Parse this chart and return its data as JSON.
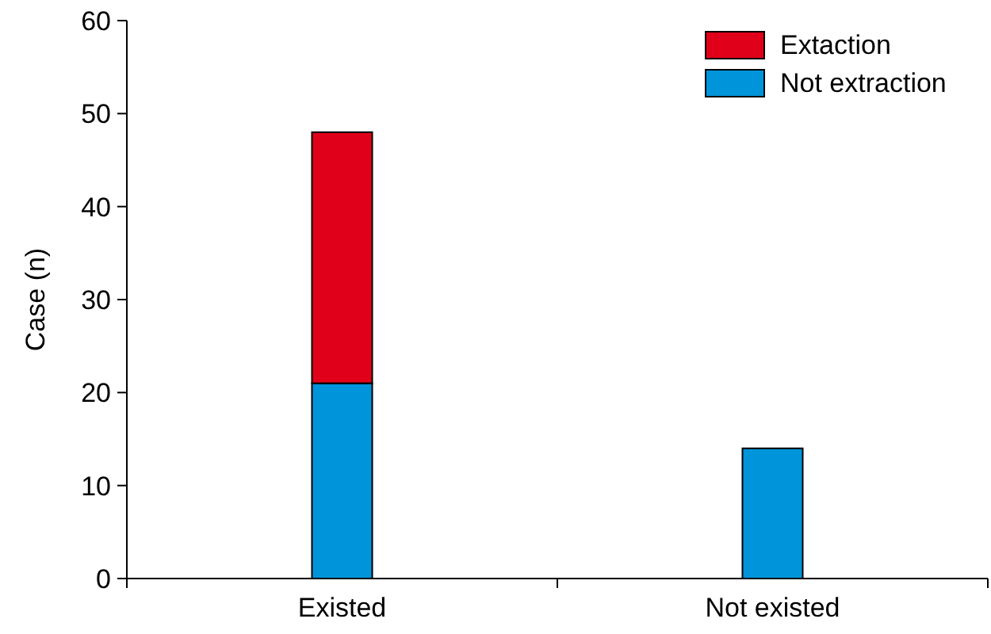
{
  "chart_data": {
    "type": "bar",
    "ylabel": "Case (n)",
    "categories": [
      "Existed",
      "Not existed"
    ],
    "stacked": true,
    "ylim": [
      0,
      60
    ],
    "yticks": [
      0,
      10,
      20,
      30,
      40,
      50,
      60
    ],
    "legend": "top right",
    "series": [
      {
        "name": "Not extraction",
        "color": "#0095da",
        "values": [
          21,
          14
        ]
      },
      {
        "name": "Extaction",
        "color": "#e1001a",
        "values": [
          27,
          0
        ]
      }
    ]
  }
}
